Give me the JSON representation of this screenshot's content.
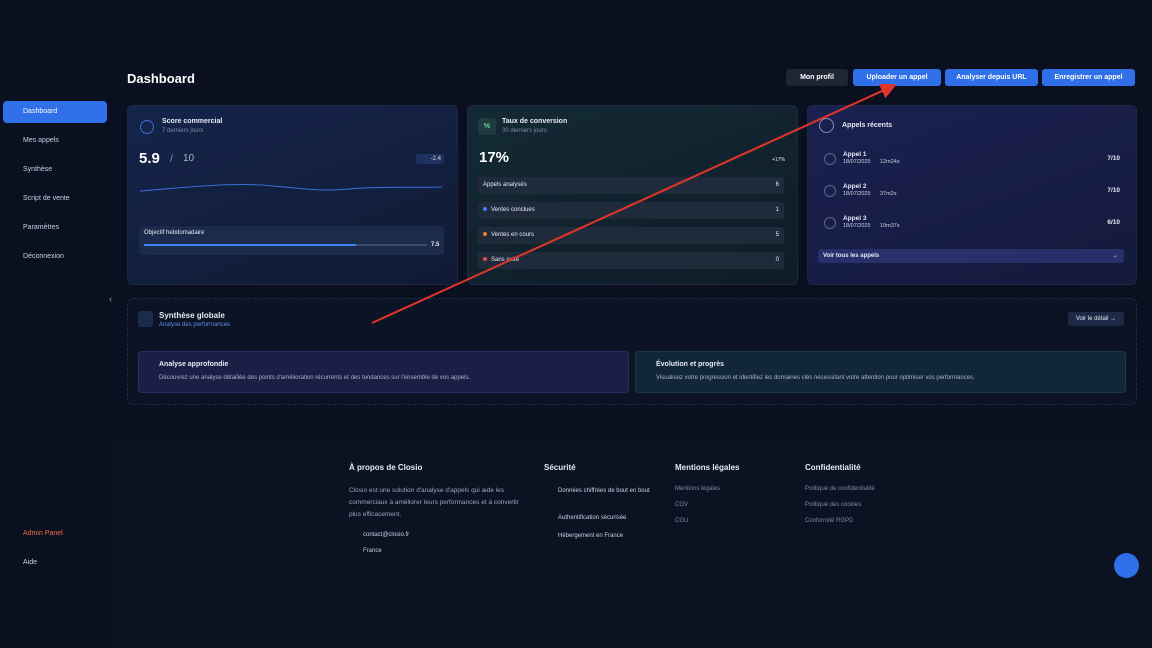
{
  "sidebar": {
    "items": [
      "Dashboard",
      "Mes appels",
      "Synthèse",
      "Script de vente",
      "Paramètres",
      "Déconnexion"
    ],
    "admin": "Admin Panel",
    "help": "Aide"
  },
  "header": {
    "title": "Dashboard",
    "buttons": [
      "Mon profil",
      "Uploader un appel",
      "Analyser depuis URL",
      "Enregistrer un appel"
    ]
  },
  "score_card": {
    "title": "Score commercial",
    "subtitle": "7 derniers jours",
    "score": "5.9",
    "max": "10",
    "trend": "-2.4",
    "objective": {
      "label": "Objectif hebdomadaire",
      "value": 7.5
    }
  },
  "conversion_card": {
    "title": "Taux de conversion",
    "subtitle": "30 derniers jours",
    "rate": "17%",
    "trend": "+17%",
    "rows": [
      [
        "Appels analysés",
        "6"
      ],
      [
        "Ventes conclues",
        "1"
      ],
      [
        "Ventes en cours",
        "5"
      ],
      [
        "Sans suite",
        "0"
      ]
    ]
  },
  "recent_calls": {
    "title": "Appels récents",
    "calls": [
      {
        "name": "Appel 1",
        "date": "18/07/2025",
        "duration": "12m24s",
        "score": "7/10"
      },
      {
        "name": "Appel 2",
        "date": "18/07/2025",
        "duration": "37m2s",
        "score": "7/10"
      },
      {
        "name": "Appel 3",
        "date": "18/07/2025",
        "duration": "19m37s",
        "score": "6/10"
      }
    ],
    "link": "Voir tous les appels"
  },
  "synthese": {
    "title": "Synthèse globale",
    "subtitle": "Analyse des performances",
    "link": "Voir le détail",
    "panels": [
      {
        "title": "Analyse approfondie",
        "text": "Découvrez une analyse détaillée des points d'amélioration récurrents et des tendances sur l'ensemble de vos appels."
      },
      {
        "title": "Évolution et progrès",
        "text": "Visualisez votre progression et identifiez les domaines clés nécessitant votre attention pour optimiser vos performances."
      }
    ]
  },
  "footer": {
    "about": {
      "title": "À propos de Closio",
      "text": "Closio est une solution d'analyse d'appels qui aide les commerciaux à améliorer leurs performances et à convertir plus efficacement.",
      "email": "contact@closio.fr",
      "location": "France"
    },
    "security": {
      "title": "Sécurité",
      "items": [
        "Données chiffrées de bout en bout",
        "Authentification sécurisée",
        "Hébergement en France"
      ]
    },
    "legal": {
      "title": "Mentions légales",
      "items": [
        "Mentions légales",
        "CGV",
        "CGU"
      ]
    },
    "privacy": {
      "title": "Confidentialité",
      "items": [
        "Politique de confidentialité",
        "Politique des cookies",
        "Conformité RGPD"
      ]
    }
  }
}
